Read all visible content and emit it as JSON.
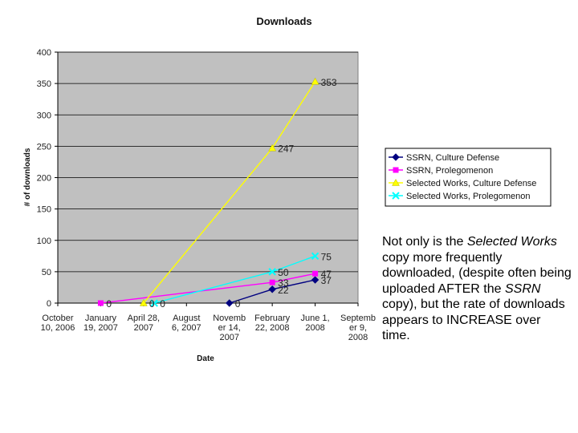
{
  "chart_data": {
    "type": "line",
    "title": "Downloads",
    "xlabel": "Date",
    "ylabel": "# of downloads",
    "ylim": [
      0,
      400
    ],
    "yticks": [
      0,
      50,
      100,
      150,
      200,
      250,
      300,
      350,
      400
    ],
    "x_categories": [
      [
        "October",
        "10, 2006"
      ],
      [
        "January",
        "19, 2007"
      ],
      [
        "April 28,",
        "2007"
      ],
      [
        "August",
        "6, 2007"
      ],
      [
        "Novemb",
        "er 14,",
        "2007"
      ],
      [
        "February",
        "22, 2008"
      ],
      [
        "June 1,",
        "2008"
      ],
      [
        "Septemb",
        "er 9,",
        "2008"
      ]
    ],
    "grid": "horizontal",
    "plot_background": "#c0c0c0",
    "legend_position": "right",
    "series": [
      {
        "name": "SSRN, Culture Defense",
        "color": "#000080",
        "marker": "diamond",
        "x": [
          4.0,
          5.0,
          6.0
        ],
        "values": [
          0,
          22,
          37
        ],
        "labels": [
          "0",
          "22",
          "37"
        ]
      },
      {
        "name": "SSRN, Prolegomenon",
        "color": "#ff00ff",
        "marker": "square",
        "x": [
          1.0,
          5.0,
          6.0
        ],
        "values": [
          0,
          33,
          47
        ],
        "labels": [
          "0",
          "33",
          "47"
        ]
      },
      {
        "name": "Selected Works, Culture Defense",
        "color": "#ffff00",
        "marker": "triangle",
        "x": [
          2.0,
          5.0,
          6.0
        ],
        "values": [
          0,
          247,
          353
        ],
        "labels": [
          "0",
          "247",
          "353"
        ]
      },
      {
        "name": "Selected Works, Prolegomenon",
        "color": "#00ffff",
        "marker": "x",
        "x": [
          2.25,
          5.0,
          6.0
        ],
        "values": [
          0,
          50,
          75
        ],
        "labels": [
          "0",
          "50",
          "75"
        ]
      }
    ]
  },
  "caption": {
    "t1": "Not only is the ",
    "t2": "Selected Works",
    "t3": " copy more frequently downloaded, (despite often being uploaded AFTER the ",
    "t4": "SSRN",
    "t5": " copy), but the rate of downloads appears to INCREASE over time."
  }
}
